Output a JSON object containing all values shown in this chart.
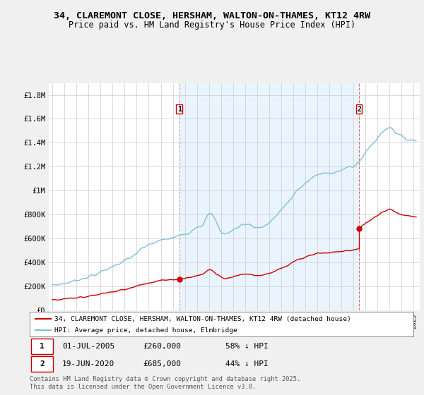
{
  "title1": "34, CLAREMONT CLOSE, HERSHAM, WALTON-ON-THAMES, KT12 4RW",
  "title2": "Price paid vs. HM Land Registry's House Price Index (HPI)",
  "background_color": "#f0f0f0",
  "plot_bg_color": "#ffffff",
  "hpi_color": "#7fbfdf",
  "price_color": "#cc0000",
  "vline1_color": "#aaaacc",
  "vline2_color": "#ee8888",
  "shade_color": "#ddeeff",
  "purchase1_date": "01-JUL-2005",
  "purchase1_price": 260000,
  "purchase1_year": 2005.54,
  "purchase1_pct": "58% ↓ HPI",
  "purchase2_date": "19-JUN-2020",
  "purchase2_price": 685000,
  "purchase2_year": 2020.46,
  "purchase2_pct": "44% ↓ HPI",
  "legend1": "34, CLAREMONT CLOSE, HERSHAM, WALTON-ON-THAMES, KT12 4RW (detached house)",
  "legend2": "HPI: Average price, detached house, Elmbridge",
  "footer": "Contains HM Land Registry data © Crown copyright and database right 2025.\nThis data is licensed under the Open Government Licence v3.0.",
  "ylim_max": 1900000,
  "yticks": [
    0,
    200000,
    400000,
    600000,
    800000,
    1000000,
    1200000,
    1400000,
    1600000,
    1800000
  ],
  "ytick_labels": [
    "£0",
    "£200K",
    "£400K",
    "£600K",
    "£800K",
    "£1M",
    "£1.2M",
    "£1.4M",
    "£1.6M",
    "£1.8M"
  ],
  "xmin": 1994.7,
  "xmax": 2025.5
}
